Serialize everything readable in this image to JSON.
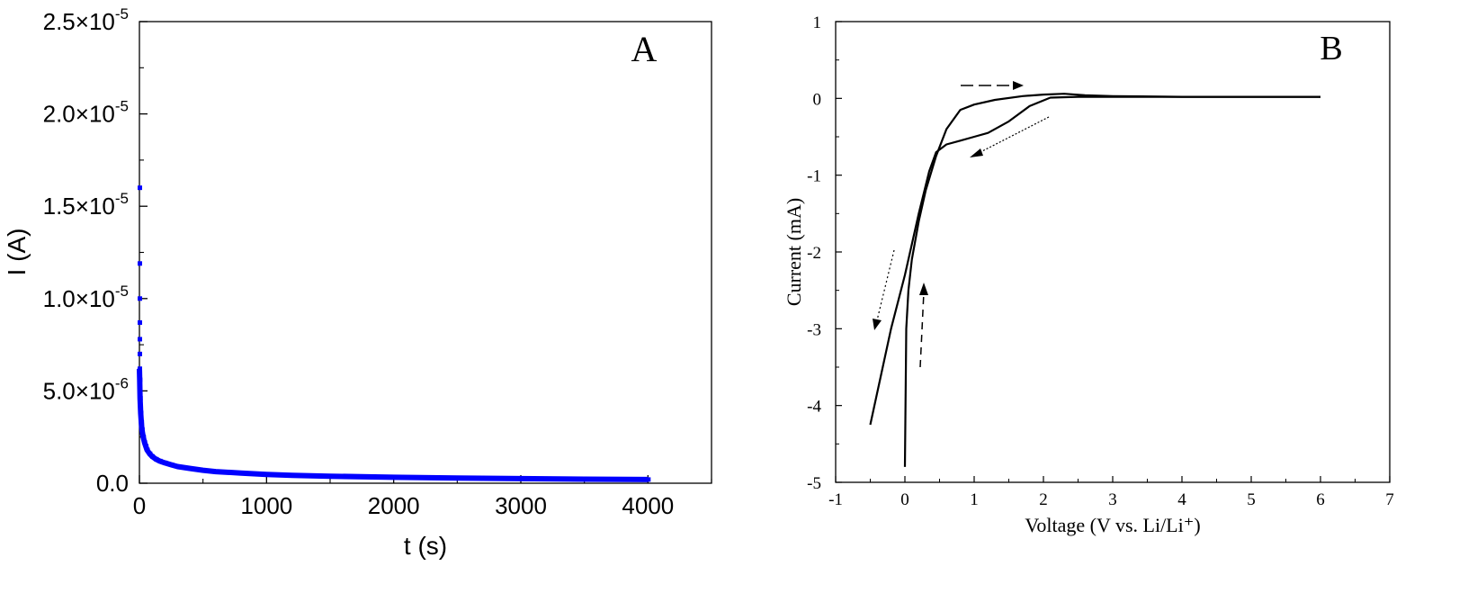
{
  "chart_data": [
    {
      "type": "scatter",
      "panel_label": "A",
      "xlabel": "t (s)",
      "ylabel": "I (A)",
      "xlim": [
        0,
        4500
      ],
      "ylim": [
        0,
        2.5e-05
      ],
      "xticks": [
        0,
        1000,
        2000,
        3000,
        4000
      ],
      "xtick_labels": [
        "0",
        "1000",
        "2000",
        "3000",
        "4000"
      ],
      "yticks": [
        0,
        5e-06,
        1e-05,
        1.5e-05,
        2e-05,
        2.5e-05
      ],
      "ytick_labels": [
        "0.0",
        "5.0×10",
        "1.0×10",
        "1.5×10",
        "2.0×10",
        "2.5×10"
      ],
      "ytick_exponents": [
        "",
        "-6",
        "-5",
        "-5",
        "-5",
        "-5"
      ],
      "grid": false,
      "series": [
        {
          "color": "#0000ff",
          "x": [
            0,
            0,
            0,
            0,
            0,
            0,
            0,
            2,
            5,
            10,
            15,
            20,
            30,
            40,
            50,
            60,
            80,
            100,
            130,
            160,
            200,
            250,
            300,
            400,
            500,
            600,
            800,
            1000,
            1200,
            1500,
            2000,
            2500,
            3000,
            3500,
            4000
          ],
          "y": [
            1.6e-05,
            1.19e-05,
            1e-05,
            8.7e-06,
            7.8e-06,
            7e-06,
            6.2e-06,
            5.6e-06,
            4.6e-06,
            3.8e-06,
            3.3e-06,
            2.9e-06,
            2.5e-06,
            2.2e-06,
            2e-06,
            1.8e-06,
            1.6e-06,
            1.45e-06,
            1.3e-06,
            1.2e-06,
            1.1e-06,
            1e-06,
            9e-07,
            8e-07,
            7e-07,
            6.3e-07,
            5.5e-07,
            4.8e-07,
            4.3e-07,
            3.8e-07,
            3.2e-07,
            2.8e-07,
            2.5e-07,
            2.2e-07,
            2e-07
          ]
        }
      ]
    },
    {
      "type": "line",
      "panel_label": "B",
      "xlabel": "Voltage (V vs. Li/Li⁺)",
      "ylabel": "Current (mA)",
      "xlim": [
        -1,
        7
      ],
      "ylim": [
        -5,
        1
      ],
      "xticks": [
        -1,
        0,
        1,
        2,
        3,
        4,
        5,
        6,
        7
      ],
      "xtick_labels": [
        "-1",
        "0",
        "1",
        "2",
        "3",
        "4",
        "5",
        "6",
        "7"
      ],
      "yticks": [
        -5,
        -4,
        -3,
        -2,
        -1,
        0,
        1
      ],
      "ytick_labels": [
        "-5",
        "-4",
        "-3",
        "-2",
        "-1",
        "0",
        "1"
      ],
      "grid": false,
      "series": [
        {
          "color": "#000000",
          "x": [
            6.0,
            5.0,
            4.0,
            3.0,
            2.5,
            2.1,
            1.8,
            1.5,
            1.2,
            1.0,
            0.8,
            0.6,
            0.45,
            0.35,
            0.2,
            0.0,
            -0.2,
            -0.5
          ],
          "y": [
            0.02,
            0.02,
            0.02,
            0.02,
            0.02,
            0.01,
            -0.1,
            -0.3,
            -0.45,
            -0.5,
            -0.55,
            -0.6,
            -0.7,
            -0.95,
            -1.5,
            -2.3,
            -3.0,
            -4.25
          ]
        },
        {
          "color": "#000000",
          "x": [
            0.0,
            0.02,
            0.05,
            0.1,
            0.2,
            0.3,
            0.45,
            0.6,
            0.8,
            1.0,
            1.3,
            1.7,
            2.0,
            2.3,
            2.6,
            3.0,
            4.0,
            5.0,
            6.0
          ],
          "y": [
            -4.8,
            -3.0,
            -2.5,
            -2.1,
            -1.6,
            -1.2,
            -0.75,
            -0.4,
            -0.15,
            -0.08,
            -0.02,
            0.03,
            0.05,
            0.06,
            0.04,
            0.03,
            0.02,
            0.02,
            0.02
          ]
        }
      ]
    }
  ]
}
